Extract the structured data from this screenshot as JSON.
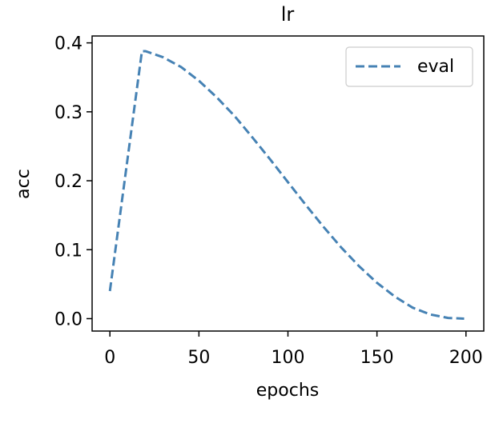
{
  "chart_data": {
    "type": "line",
    "title": "lr",
    "xlabel": "epochs",
    "ylabel": "acc",
    "xlim": [
      -10,
      210
    ],
    "ylim": [
      -0.018,
      0.41
    ],
    "xticks": [
      0,
      50,
      100,
      150,
      200
    ],
    "xtick_labels": [
      "0",
      "50",
      "100",
      "150",
      "200"
    ],
    "yticks": [
      0.0,
      0.1,
      0.2,
      0.3,
      0.4
    ],
    "ytick_labels": [
      "0.0",
      "0.1",
      "0.2",
      "0.3",
      "0.4"
    ],
    "grid": false,
    "legend_position": "top-right",
    "series": [
      {
        "name": "eval",
        "color": "#4682b4",
        "linestyle": "dashed",
        "x": [
          0,
          18,
          20,
          30,
          40,
          50,
          60,
          70,
          80,
          90,
          100,
          110,
          120,
          130,
          140,
          150,
          160,
          170,
          180,
          190,
          199
        ],
        "y": [
          0.04,
          0.388,
          0.388,
          0.379,
          0.365,
          0.345,
          0.321,
          0.294,
          0.263,
          0.231,
          0.198,
          0.165,
          0.133,
          0.103,
          0.076,
          0.052,
          0.032,
          0.016,
          0.006,
          0.001,
          0.0
        ]
      }
    ]
  }
}
